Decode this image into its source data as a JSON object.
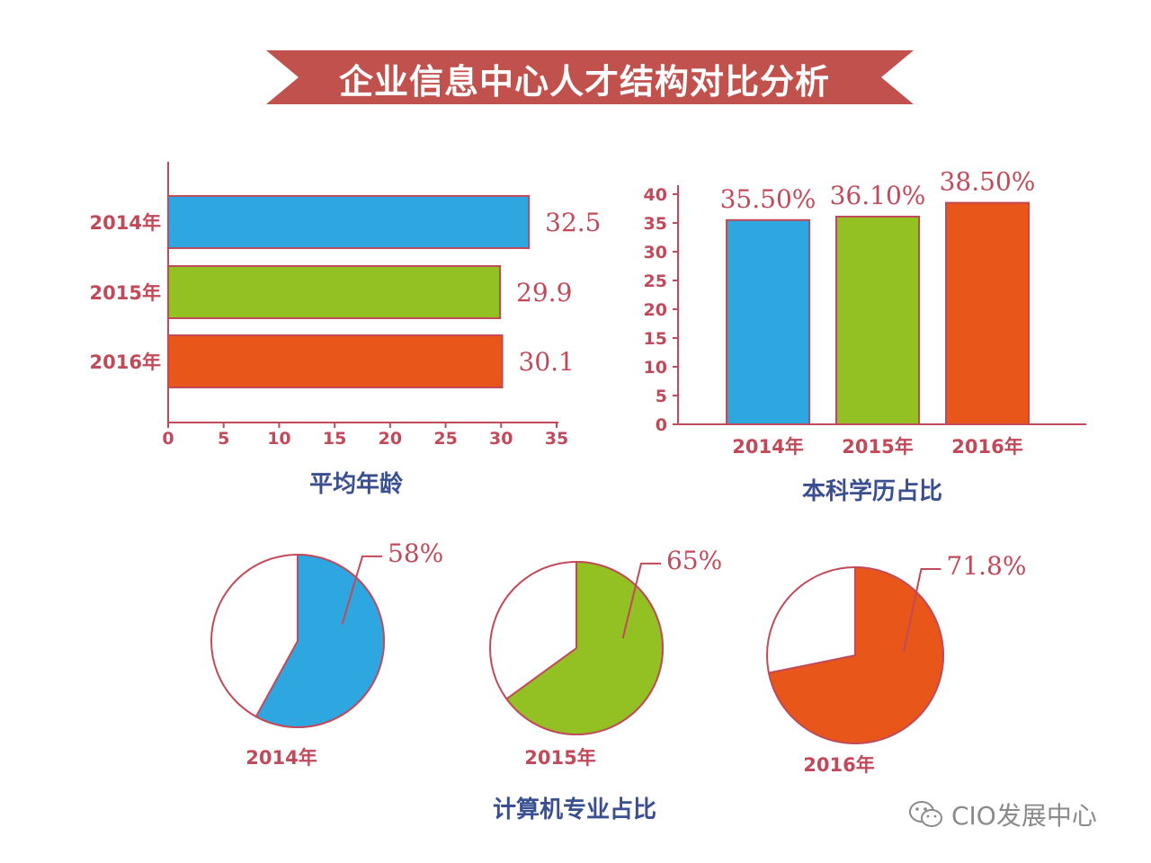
{
  "banner": {
    "title": "企业信息中心人才结构对比分析"
  },
  "colors": {
    "blue": "#2ea6e0",
    "green": "#93c022",
    "orange": "#e85619",
    "frame": "#c14a5a",
    "axis": "#c14a5a",
    "caption": "#3a4f8f"
  },
  "watermark": {
    "text": "CIO发展中心"
  },
  "chart_data": [
    {
      "type": "bar",
      "orientation": "horizontal",
      "caption": "平均年龄",
      "categories": [
        "2014年",
        "2015年",
        "2016年"
      ],
      "values": [
        32.5,
        29.9,
        30.1
      ],
      "value_labels": [
        "32.5",
        "29.9",
        "30.1"
      ],
      "xlim": [
        0,
        35
      ],
      "xticks": [
        "0",
        "5",
        "10",
        "15",
        "20",
        "25",
        "30",
        "35"
      ]
    },
    {
      "type": "bar",
      "orientation": "vertical",
      "caption": "本科学历占比",
      "categories": [
        "2014年",
        "2015年",
        "2016年"
      ],
      "values": [
        35.5,
        36.1,
        38.5
      ],
      "value_labels": [
        "35.50%",
        "36.10%",
        "38.50%"
      ],
      "ylim": [
        0,
        40
      ],
      "yticks": [
        "0",
        "5",
        "10",
        "15",
        "20",
        "25",
        "30",
        "35",
        "40"
      ]
    },
    {
      "type": "pie",
      "caption": "计算机专业占比",
      "categories": [
        "2014年",
        "2015年",
        "2016年"
      ],
      "values": [
        58,
        65,
        71.8
      ],
      "value_labels": [
        "58%",
        "65%",
        "71.8%"
      ]
    }
  ]
}
